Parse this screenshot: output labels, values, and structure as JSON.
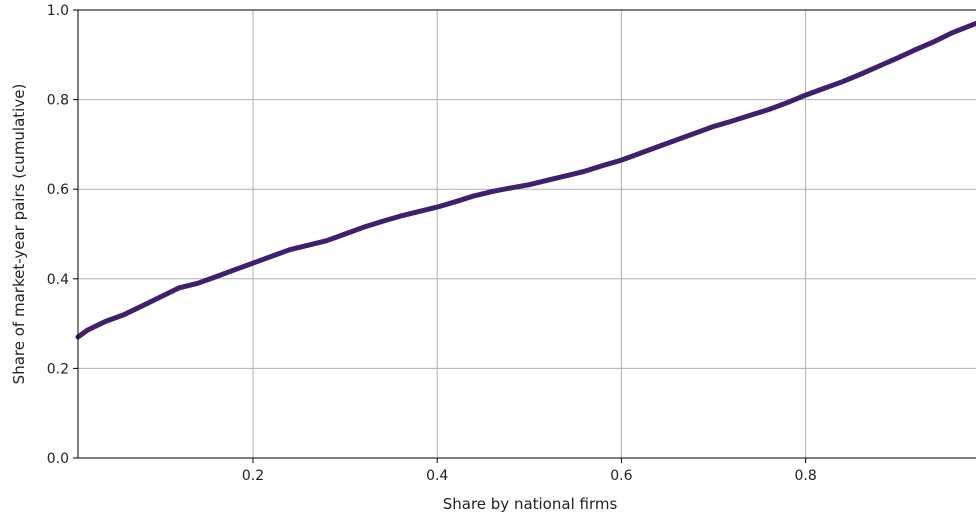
{
  "chart_data": {
    "type": "line",
    "xlabel": "Share by national firms",
    "ylabel": "Share of market-year pairs (cumulative)",
    "xlim": [
      0.01,
      0.985
    ],
    "ylim": [
      0.0,
      1.0
    ],
    "xticks": [
      0.2,
      0.4,
      0.6,
      0.8
    ],
    "xtick_labels": [
      "0.2",
      "0.4",
      "0.6",
      "0.8"
    ],
    "yticks": [
      0.0,
      0.2,
      0.4,
      0.6,
      0.8,
      1.0
    ],
    "ytick_labels": [
      "0.0",
      "0.2",
      "0.4",
      "0.6",
      "0.8",
      "1.0"
    ],
    "grid": true,
    "series": [
      {
        "color": "#3f1f6e",
        "x": [
          0.01,
          0.02,
          0.04,
          0.06,
          0.08,
          0.1,
          0.12,
          0.14,
          0.16,
          0.18,
          0.2,
          0.22,
          0.24,
          0.26,
          0.28,
          0.3,
          0.32,
          0.34,
          0.36,
          0.38,
          0.4,
          0.42,
          0.44,
          0.46,
          0.48,
          0.5,
          0.52,
          0.54,
          0.56,
          0.58,
          0.6,
          0.62,
          0.64,
          0.66,
          0.68,
          0.7,
          0.72,
          0.74,
          0.76,
          0.78,
          0.8,
          0.82,
          0.84,
          0.86,
          0.88,
          0.9,
          0.92,
          0.94,
          0.96,
          0.985
        ],
        "y": [
          0.27,
          0.285,
          0.305,
          0.32,
          0.34,
          0.36,
          0.38,
          0.39,
          0.405,
          0.42,
          0.435,
          0.45,
          0.465,
          0.475,
          0.485,
          0.5,
          0.515,
          0.528,
          0.54,
          0.55,
          0.56,
          0.572,
          0.585,
          0.595,
          0.603,
          0.61,
          0.62,
          0.63,
          0.64,
          0.653,
          0.665,
          0.68,
          0.695,
          0.71,
          0.725,
          0.74,
          0.752,
          0.765,
          0.778,
          0.793,
          0.81,
          0.825,
          0.84,
          0.857,
          0.875,
          0.893,
          0.912,
          0.93,
          0.95,
          0.97
        ]
      }
    ]
  }
}
